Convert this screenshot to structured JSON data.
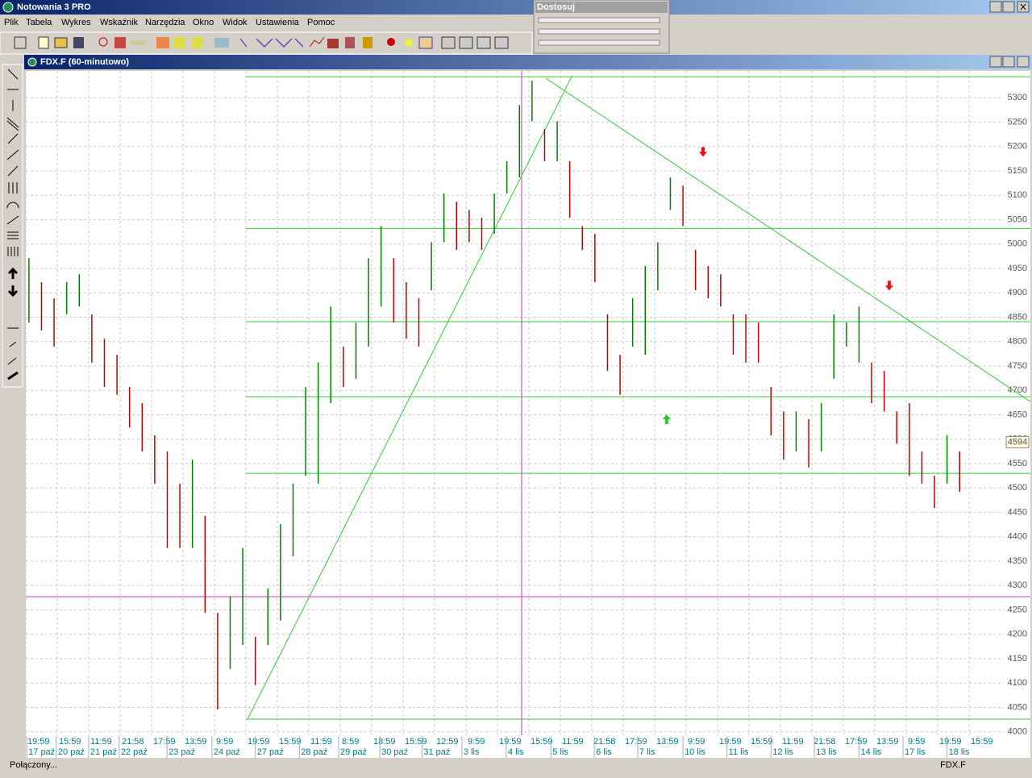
{
  "app": {
    "title": "Notowania 3 PRO",
    "menu": [
      "Plik",
      "Tabela",
      "Wykres",
      "Wskaźnik",
      "Narzędzia",
      "Okno",
      "Widok",
      "Ustawienia",
      "Pomoc"
    ],
    "panel_title": "Dostosuj",
    "window_title": "FDX.F (60-minutowo)",
    "status": [
      "Połączony...",
      "FDX.F"
    ]
  },
  "chart_data": {
    "type": "ohlc",
    "up_color": "#008000",
    "down_color": "#c00000",
    "x": [
      1,
      5,
      9,
      13,
      17,
      21,
      25,
      29,
      33,
      37,
      41,
      45,
      49,
      53,
      57,
      61,
      65,
      69,
      73,
      77,
      81,
      85,
      89,
      93,
      97,
      101,
      105,
      109,
      113,
      117,
      121,
      125,
      129,
      133,
      137,
      141,
      145,
      149,
      153,
      157,
      161,
      165,
      169,
      173,
      177,
      181,
      185,
      189,
      193,
      197,
      201,
      205,
      209,
      213,
      217,
      221,
      225,
      229,
      233,
      237,
      241,
      245,
      249,
      253,
      257,
      261,
      265,
      269,
      273,
      277,
      281,
      285,
      289,
      293,
      297
    ],
    "high": [
      4971,
      4922,
      4889,
      4922,
      4938,
      4856,
      4806,
      4773,
      4707,
      4674,
      4608,
      4575,
      4509,
      4558,
      4443,
      4244,
      4278,
      4377,
      4195,
      4294,
      4426,
      4509,
      4707,
      4757,
      4872,
      4790,
      4839,
      4971,
      5037,
      4971,
      4922,
      4889,
      5004,
      5104,
      5087,
      5070,
      5054,
      5104,
      5170,
      5285,
      5335,
      5236,
      5252,
      5170,
      5037,
      5021,
      4856,
      4773,
      4889,
      4955,
      5004,
      5137,
      5120,
      4988,
      4955,
      4938,
      4856,
      4856,
      4839,
      4707,
      4657,
      4657,
      4641,
      4674,
      4856,
      4839,
      4872,
      4757,
      4740,
      4657,
      4674,
      4575,
      4525,
      4608,
      4575
    ],
    "low": [
      4839,
      4823,
      4790,
      4856,
      4872,
      4757,
      4707,
      4691,
      4624,
      4575,
      4509,
      4377,
      4377,
      4377,
      4244,
      4046,
      4129,
      4178,
      4096,
      4178,
      4228,
      4360,
      4525,
      4509,
      4674,
      4707,
      4724,
      4790,
      4872,
      4839,
      4806,
      4790,
      4905,
      5004,
      4988,
      5004,
      4988,
      5021,
      5104,
      5137,
      5252,
      5170,
      5170,
      5054,
      4988,
      4922,
      4740,
      4691,
      4790,
      4773,
      4905,
      5070,
      5037,
      4905,
      4889,
      4872,
      4773,
      4757,
      4757,
      4608,
      4558,
      4575,
      4542,
      4575,
      4724,
      4790,
      4757,
      4674,
      4657,
      4591,
      4525,
      4509,
      4459,
      4509,
      4492
    ],
    "xlim": [
      0,
      319.5
    ],
    "ylim": [
      3993,
      5355
    ],
    "yticks": [
      4000,
      4050,
      4100,
      4150,
      4200,
      4250,
      4300,
      4350,
      4400,
      4450,
      4500,
      4550,
      4600,
      4650,
      4700,
      4750,
      4800,
      4850,
      4900,
      4950,
      5000,
      5050,
      5100,
      5150,
      5200,
      5250,
      5300
    ],
    "xticks": [
      {
        "value": 0,
        "label": "19:59"
      },
      {
        "value": 10,
        "label": "15:59"
      },
      {
        "value": 20,
        "label": "11:59"
      },
      {
        "value": 30,
        "label": "21:58"
      },
      {
        "value": 40,
        "label": "17:59"
      },
      {
        "value": 50,
        "label": "13:59"
      },
      {
        "value": 60,
        "label": "9:59"
      },
      {
        "value": 70,
        "label": "19:59"
      },
      {
        "value": 80,
        "label": "15:59"
      },
      {
        "value": 90,
        "label": "11:59"
      },
      {
        "value": 100,
        "label": "8:59"
      },
      {
        "value": 110,
        "label": "18:59"
      },
      {
        "value": 120,
        "label": "15:59"
      },
      {
        "value": 130,
        "label": "12:59"
      },
      {
        "value": 140,
        "label": "9:59"
      },
      {
        "value": 150,
        "label": "19:59"
      },
      {
        "value": 160,
        "label": "15:59"
      },
      {
        "value": 170,
        "label": "11:59"
      },
      {
        "value": 180,
        "label": "21:58"
      },
      {
        "value": 190,
        "label": "17:59"
      },
      {
        "value": 200,
        "label": "13:59"
      },
      {
        "value": 210,
        "label": "9:59"
      },
      {
        "value": 220,
        "label": "19:59"
      },
      {
        "value": 230,
        "label": "15:59"
      },
      {
        "value": 240,
        "label": "11:59"
      },
      {
        "value": 250,
        "label": "21:58"
      },
      {
        "value": 260,
        "label": "17:59"
      },
      {
        "value": 270,
        "label": "13:59"
      },
      {
        "value": 280,
        "label": "9:59"
      },
      {
        "value": 290,
        "label": "19:59"
      },
      {
        "value": 300,
        "label": "15:59"
      }
    ],
    "date_ticks": [
      {
        "value": 0.3,
        "label": "17 paź"
      },
      {
        "value": 9.7,
        "label": "20 paź"
      },
      {
        "value": 20,
        "label": "21 paź"
      },
      {
        "value": 29.7,
        "label": "22 paź"
      },
      {
        "value": 44.9,
        "label": "23 paź"
      },
      {
        "value": 59.2,
        "label": "24 paź"
      },
      {
        "value": 73,
        "label": "27 paź"
      },
      {
        "value": 87,
        "label": "28 paź"
      },
      {
        "value": 99.5,
        "label": "29 paź"
      },
      {
        "value": 112.6,
        "label": "30 paź"
      },
      {
        "value": 126,
        "label": "31 paź"
      },
      {
        "value": 138.7,
        "label": "3 lis"
      },
      {
        "value": 152.8,
        "label": "4 lis"
      },
      {
        "value": 167,
        "label": "5 lis"
      },
      {
        "value": 180.8,
        "label": "6 lis"
      },
      {
        "value": 194.6,
        "label": "7 lis"
      },
      {
        "value": 209,
        "label": "10 lis"
      },
      {
        "value": 223,
        "label": "11 lis"
      },
      {
        "value": 237,
        "label": "12 lis"
      },
      {
        "value": 250.8,
        "label": "13 lis"
      },
      {
        "value": 265,
        "label": "14 lis"
      },
      {
        "value": 279,
        "label": "17 lis"
      },
      {
        "value": 293,
        "label": "18 lis"
      }
    ],
    "grid": true,
    "hlines": [
      5343,
      5032,
      4841,
      4687,
      4530,
      4026
    ],
    "hline_start": 70,
    "hline_color": "#33cc33",
    "trendlines": [
      {
        "x": [
          70.5,
          173.8
        ],
        "y": [
          4026,
          5346
        ]
      },
      {
        "x": [
          165.4,
          319.5
        ],
        "y": [
          5340,
          4677
        ]
      }
    ],
    "cursor": {
      "x": 157.7,
      "y": 4277,
      "color": "#cc33cc"
    },
    "signals": [
      {
        "x": 215.4,
        "y": 5189,
        "dir": "down",
        "color": "#ee1111"
      },
      {
        "x": 274.6,
        "y": 4915,
        "dir": "down",
        "color": "#ee1111"
      },
      {
        "x": 203.8,
        "y": 4641,
        "dir": "up",
        "color": "#22cc22"
      }
    ],
    "last_price": 4594
  }
}
